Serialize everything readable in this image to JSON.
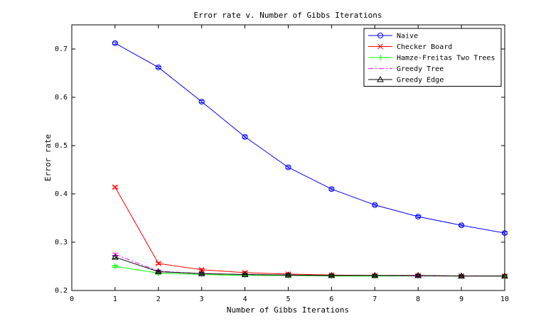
{
  "chart_data": {
    "type": "line",
    "title": "Error rate v. Number of Gibbs Iterations",
    "xlabel": "Number of Gibbs Iterations",
    "ylabel": "Error rate",
    "xlim": [
      0,
      10
    ],
    "ylim": [
      0.2,
      0.75
    ],
    "xticks": [
      0,
      1,
      2,
      3,
      4,
      5,
      6,
      7,
      8,
      9,
      10
    ],
    "yticks": [
      0.2,
      0.3,
      0.4,
      0.5,
      0.6,
      0.7
    ],
    "ytick_labels": [
      "0.2",
      "0.3",
      "0.4",
      "0.5",
      "0.6",
      "0.7"
    ],
    "grid": false,
    "legend_position": "top-right",
    "x": [
      1,
      2,
      3,
      4,
      5,
      6,
      7,
      8,
      9,
      10
    ],
    "series": [
      {
        "name": "Naive",
        "color": "#0000ff",
        "marker": "circle",
        "linestyle": "solid",
        "values": [
          0.712,
          0.662,
          0.591,
          0.518,
          0.455,
          0.41,
          0.377,
          0.353,
          0.335,
          0.319
        ]
      },
      {
        "name": "Checker Board",
        "color": "#ff0000",
        "marker": "x",
        "linestyle": "solid",
        "values": [
          0.414,
          0.256,
          0.243,
          0.237,
          0.234,
          0.232,
          0.231,
          0.231,
          0.23,
          0.23
        ]
      },
      {
        "name": "Hamze-Freitas Two Trees",
        "color": "#00ff00",
        "marker": "plus",
        "linestyle": "solid",
        "values": [
          0.25,
          0.236,
          0.233,
          0.231,
          0.231,
          0.23,
          0.23,
          0.23,
          0.23,
          0.23
        ]
      },
      {
        "name": "Greedy Tree",
        "color": "#ff00ff",
        "marker": "none",
        "linestyle": "dashdot",
        "values": [
          0.275,
          0.24,
          0.235,
          0.233,
          0.232,
          0.231,
          0.231,
          0.23,
          0.23,
          0.23
        ]
      },
      {
        "name": "Greedy Edge",
        "color": "#000000",
        "marker": "triangle",
        "linestyle": "solid",
        "values": [
          0.269,
          0.239,
          0.235,
          0.233,
          0.232,
          0.231,
          0.231,
          0.231,
          0.23,
          0.23
        ]
      }
    ]
  }
}
